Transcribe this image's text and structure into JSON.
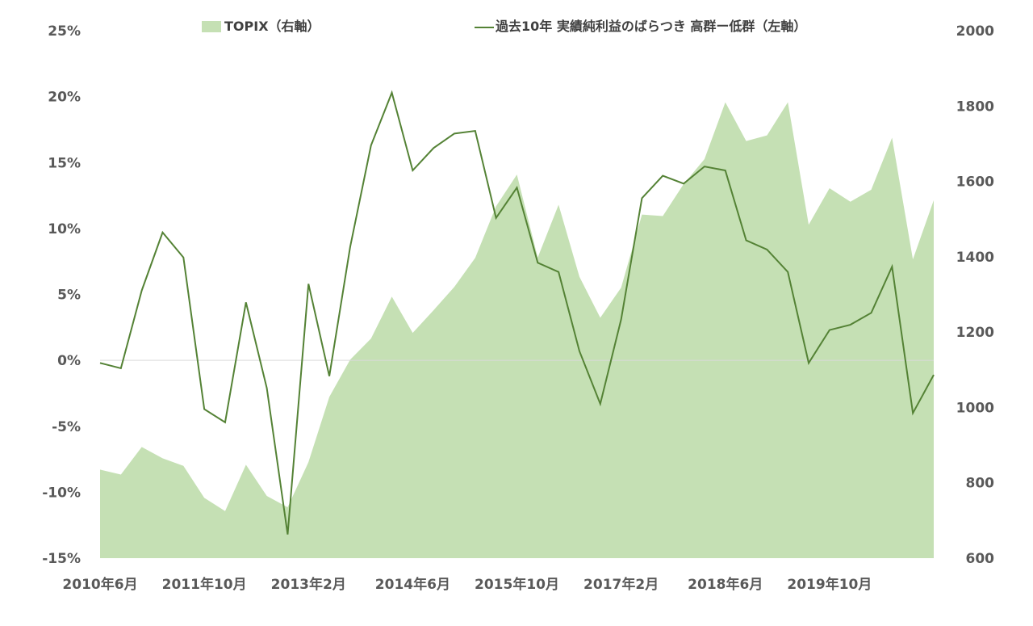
{
  "chart_data": {
    "type": "area+line",
    "x_labels": [
      "2010年6月",
      "2011年10月",
      "2013年2月",
      "2014年6月",
      "2015年10月",
      "2017年2月",
      "2018年6月",
      "2019年10月"
    ],
    "x_label_index": [
      0,
      5,
      10,
      15,
      20,
      25,
      30,
      35
    ],
    "legend": {
      "area": "TOPIX（右軸）",
      "line": "過去10年 実績純利益のばらつき 高群ー低群（左軸）"
    },
    "left_axis": {
      "min": -15,
      "max": 25,
      "step": 5,
      "tick_labels": [
        "-15%",
        "-10%",
        "-5%",
        "0%",
        "5%",
        "10%",
        "15%",
        "20%",
        "25%"
      ]
    },
    "right_axis": {
      "min": 600,
      "max": 2000,
      "step": 200,
      "tick_labels": [
        "600",
        "800",
        "1000",
        "1200",
        "1400",
        "1600",
        "1800",
        "2000"
      ]
    },
    "series": [
      {
        "name": "TOPIX（右軸）",
        "kind": "area",
        "axis": "right",
        "color": "#c5e0b4",
        "values": [
          835,
          822,
          895,
          865,
          845,
          760,
          725,
          848,
          765,
          735,
          855,
          1028,
          1127,
          1183,
          1294,
          1198,
          1258,
          1320,
          1397,
          1534,
          1618,
          1398,
          1538,
          1347,
          1238,
          1318,
          1512,
          1508,
          1593,
          1659,
          1810,
          1707,
          1722,
          1810,
          1485,
          1582,
          1546,
          1578,
          1716,
          1393,
          1550
        ]
      },
      {
        "name": "過去10年 実績純利益のばらつき 高群ー低群（左軸）",
        "kind": "line",
        "axis": "left",
        "color": "#548235",
        "values": [
          -0.2,
          -0.6,
          5.3,
          9.7,
          7.8,
          -3.7,
          -4.7,
          4.4,
          -2.1,
          -13.2,
          5.8,
          -1.2,
          8.6,
          16.3,
          20.3,
          14.4,
          16.1,
          17.2,
          17.4,
          10.8,
          13.1,
          7.4,
          6.7,
          0.7,
          -3.3,
          3.1,
          12.3,
          14.0,
          13.4,
          14.7,
          14.4,
          9.1,
          8.4,
          6.7,
          -0.2,
          2.3,
          2.7,
          3.6,
          7.1,
          -4.0,
          -1.1
        ]
      }
    ]
  },
  "colors": {
    "area": "#c5e0b4",
    "line": "#548235",
    "zero_line": "#d9d9d9",
    "text": "#595959"
  }
}
